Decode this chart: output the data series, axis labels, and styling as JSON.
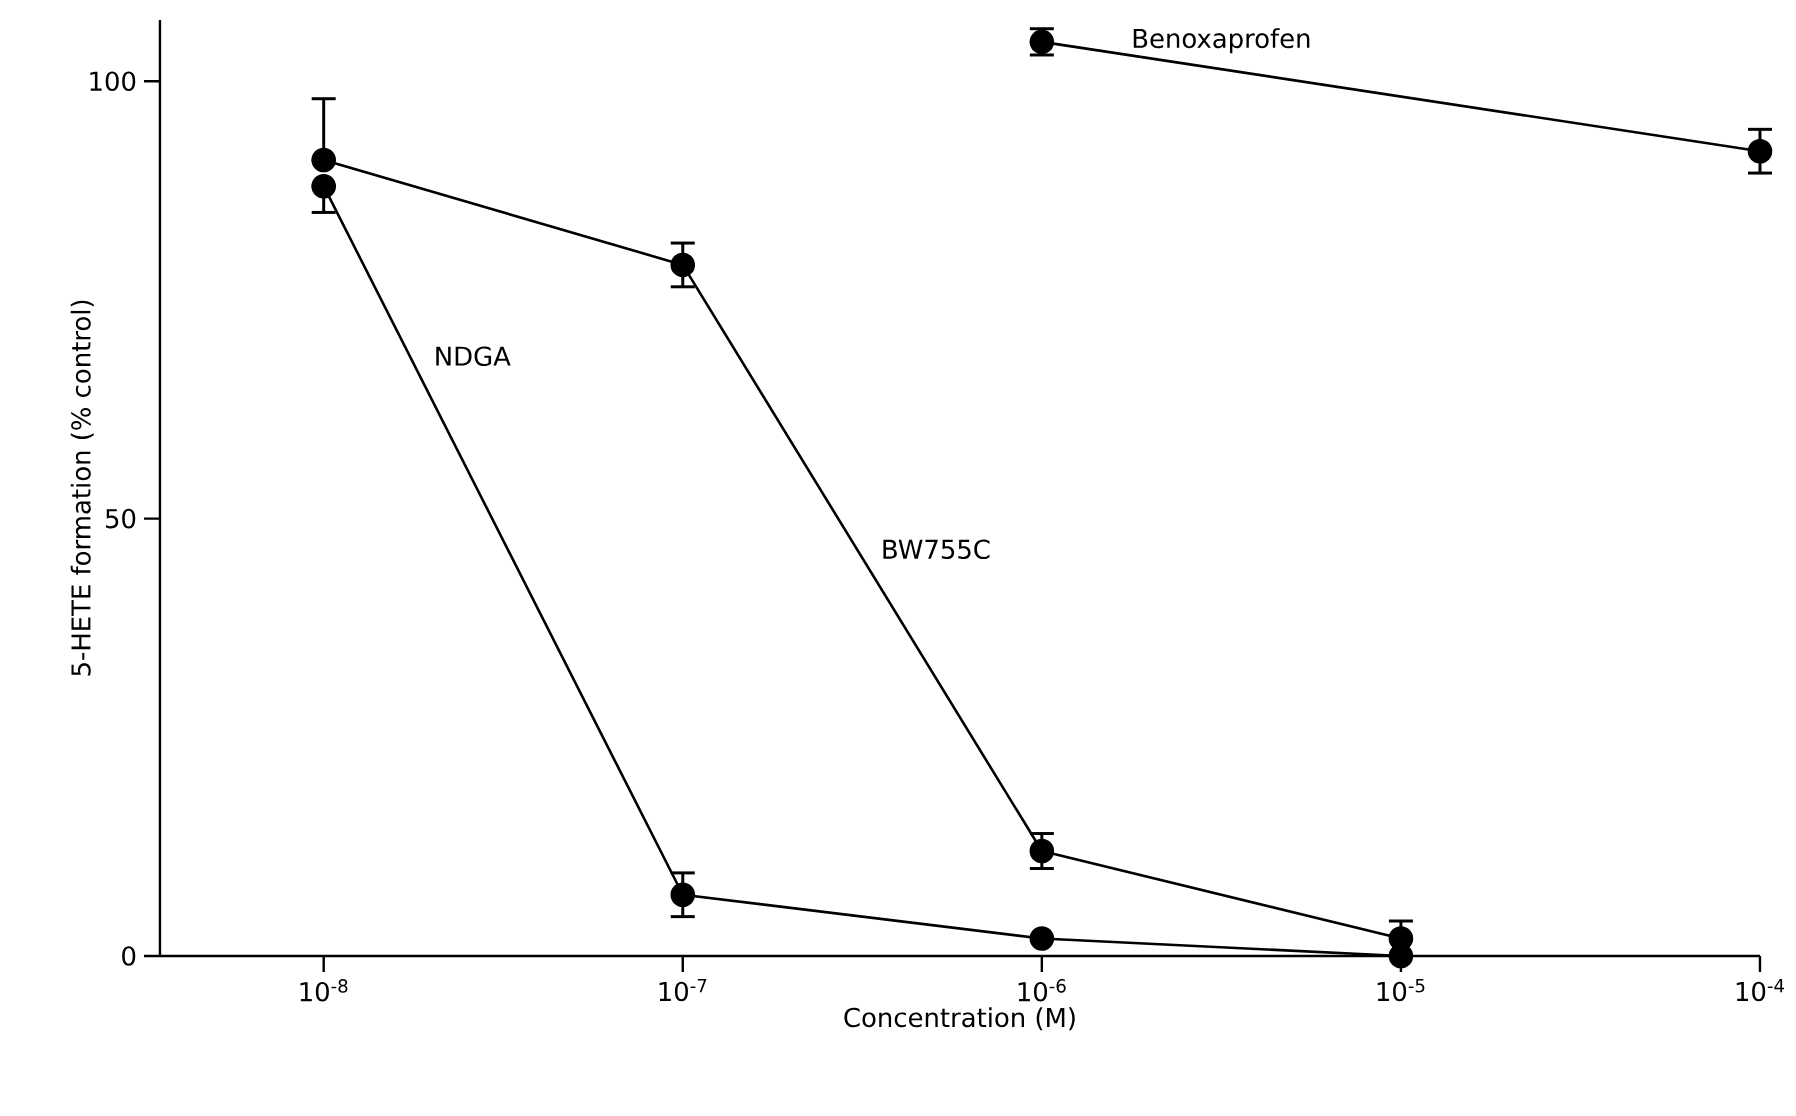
{
  "chart_data": {
    "type": "line",
    "xlabel": "Concentration (M)",
    "ylabel": "5-HETE formation (% control)",
    "log": "x",
    "marker": "circle",
    "xlim": [
      3.5e-09,
      0.0001
    ],
    "ylim": [
      0,
      107
    ],
    "xticks": [
      {
        "value": 1e-08,
        "label": "10$^{-8}$"
      },
      {
        "value": 1e-07,
        "label": "10$^{-7}$"
      },
      {
        "value": 1e-06,
        "label": "10$^{-6}$"
      },
      {
        "value": 1e-05,
        "label": "10$^{-5}$"
      },
      {
        "value": 0.0001,
        "label": "10$^{-4}$"
      }
    ],
    "yticks": [
      0,
      50,
      100
    ],
    "series": [
      {
        "name": "NDGA",
        "color": "#000000",
        "x": [
          1e-08,
          1e-07,
          1e-06,
          1e-05
        ],
        "values": [
          88,
          7,
          2,
          0
        ],
        "errors": [
          [
            85,
            88
          ],
          2.5,
          null,
          null
        ]
      },
      {
        "name": "BW755C",
        "color": "#000000",
        "x": [
          1e-08,
          1e-07,
          1e-06,
          1e-05
        ],
        "values": [
          91,
          79,
          12,
          2
        ],
        "errors": [
          [
            91,
            98
          ],
          2.5,
          2,
          2
        ]
      },
      {
        "name": "Benoxaprofen",
        "color": "#000000",
        "x": [
          1e-06,
          0.0001
        ],
        "values": [
          104.5,
          92
        ],
        "errors": [
          1.5,
          2.5
        ]
      }
    ]
  }
}
